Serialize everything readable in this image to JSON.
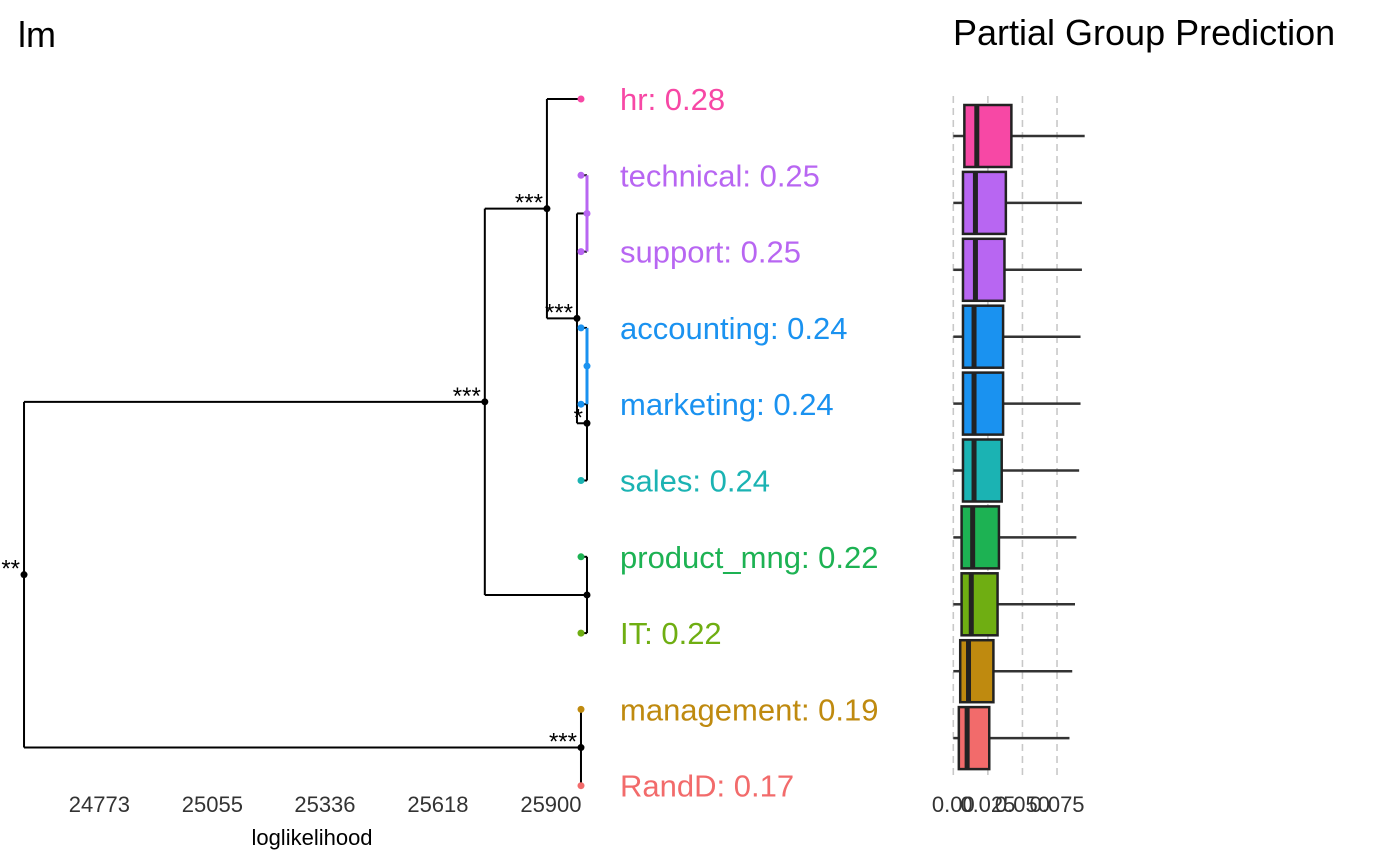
{
  "chart_data": [
    {
      "type": "dendrogram",
      "title": "lm",
      "xlabel": "loglikelihood",
      "x_ticks": [
        24773,
        25055,
        25336,
        25618,
        25900
      ],
      "x_range": [
        24550,
        26000
      ],
      "leaves": [
        {
          "name": "hr",
          "label": "hr: 0.28",
          "color": "#F748A5"
        },
        {
          "name": "technical",
          "label": "technical: 0.25",
          "color": "#B866F2"
        },
        {
          "name": "support",
          "label": "support: 0.25",
          "color": "#B866F2"
        },
        {
          "name": "accounting",
          "label": "accounting: 0.24",
          "color": "#1A92F0"
        },
        {
          "name": "marketing",
          "label": "marketing: 0.24",
          "color": "#1A92F0"
        },
        {
          "name": "sales",
          "label": "sales: 0.24",
          "color": "#1BB3B3"
        },
        {
          "name": "product_mng",
          "label": "product_mng: 0.22",
          "color": "#1DB253"
        },
        {
          "name": "IT",
          "label": "IT: 0.22",
          "color": "#6FAE12"
        },
        {
          "name": "management",
          "label": "management: 0.19",
          "color": "#BF8A0F"
        },
        {
          "name": "RandD",
          "label": "RandD: 0.17",
          "color": "#F26B6B"
        }
      ],
      "merges": [
        {
          "id": "n_ts",
          "children": [
            "technical",
            "support"
          ],
          "x": 25990,
          "sig": "",
          "color": "#B866F2"
        },
        {
          "id": "n_am",
          "children": [
            "accounting",
            "marketing"
          ],
          "x": 25990,
          "sig": "",
          "color": "#1A92F0"
        },
        {
          "id": "n_ams",
          "children": [
            "n_am",
            "sales"
          ],
          "x": 25990,
          "sig": "*"
        },
        {
          "id": "n_pi",
          "children": [
            "product_mng",
            "IT"
          ],
          "x": 25990,
          "sig": ""
        },
        {
          "id": "n_mr",
          "children": [
            "management",
            "RandD"
          ],
          "x": 25975,
          "sig": "***"
        },
        {
          "id": "n_tsams",
          "children": [
            "n_ts",
            "n_ams"
          ],
          "x": 25965,
          "sig": "***"
        },
        {
          "id": "n_htsams",
          "children": [
            "hr",
            "n_tsams"
          ],
          "x": 25890,
          "sig": "***"
        },
        {
          "id": "n_all8",
          "children": [
            "n_htsams",
            "n_pi"
          ],
          "x": 25735,
          "sig": "***"
        },
        {
          "id": "n_root",
          "children": [
            "n_all8",
            "n_mr"
          ],
          "x": 24585,
          "sig": "**"
        }
      ]
    },
    {
      "type": "boxplot",
      "title": "Partial Group Prediction",
      "x_ticks": [
        0.0,
        0.025,
        0.05,
        0.075
      ],
      "x_tick_labels": [
        "0.00",
        "0.025",
        "0.050",
        "0.075"
      ],
      "x_range": [
        -0.006,
        0.088
      ],
      "groups": [
        {
          "name": "hr",
          "color": "#F748A5",
          "q1": 0.008,
          "median": 0.017,
          "q3": 0.042,
          "whisker_low": 0.0,
          "whisker_high": 0.095
        },
        {
          "name": "technical",
          "color": "#B866F2",
          "q1": 0.007,
          "median": 0.016,
          "q3": 0.038,
          "whisker_low": 0.0,
          "whisker_high": 0.093
        },
        {
          "name": "support",
          "color": "#B866F2",
          "q1": 0.007,
          "median": 0.016,
          "q3": 0.037,
          "whisker_low": 0.0,
          "whisker_high": 0.093
        },
        {
          "name": "accounting",
          "color": "#1A92F0",
          "q1": 0.007,
          "median": 0.015,
          "q3": 0.036,
          "whisker_low": 0.0,
          "whisker_high": 0.092
        },
        {
          "name": "marketing",
          "color": "#1A92F0",
          "q1": 0.007,
          "median": 0.015,
          "q3": 0.036,
          "whisker_low": 0.0,
          "whisker_high": 0.092
        },
        {
          "name": "sales",
          "color": "#1BB3B3",
          "q1": 0.007,
          "median": 0.015,
          "q3": 0.035,
          "whisker_low": 0.0,
          "whisker_high": 0.091
        },
        {
          "name": "product_mng",
          "color": "#1DB253",
          "q1": 0.006,
          "median": 0.014,
          "q3": 0.033,
          "whisker_low": 0.0,
          "whisker_high": 0.089
        },
        {
          "name": "IT",
          "color": "#6FAE12",
          "q1": 0.006,
          "median": 0.013,
          "q3": 0.032,
          "whisker_low": 0.0,
          "whisker_high": 0.088
        },
        {
          "name": "management",
          "color": "#BF8A0F",
          "q1": 0.005,
          "median": 0.011,
          "q3": 0.029,
          "whisker_low": 0.0,
          "whisker_high": 0.086
        },
        {
          "name": "RandD",
          "color": "#F26B6B",
          "q1": 0.004,
          "median": 0.01,
          "q3": 0.026,
          "whisker_low": 0.0,
          "whisker_high": 0.084
        }
      ]
    }
  ]
}
